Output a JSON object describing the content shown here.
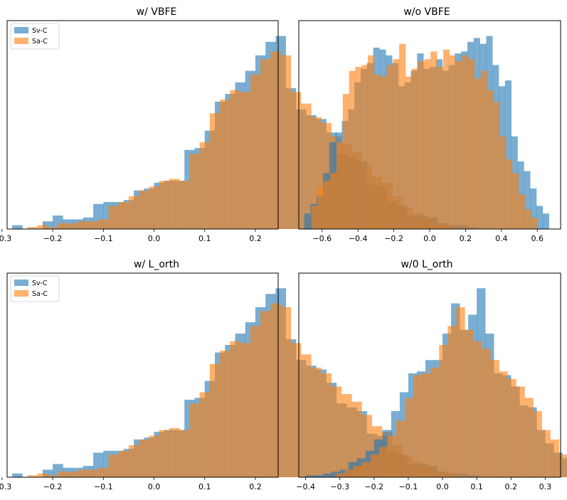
{
  "colors": {
    "sv": "#1f77b4",
    "sa": "#ff7f0e"
  },
  "legend_labels": [
    "Sv-C",
    "Sa-C"
  ],
  "chart_data": [
    {
      "type": "histogram",
      "title": "w/ VBFE",
      "xlabel": "",
      "ylabel": "",
      "xlim": [
        -0.29,
        0.245
      ],
      "ylim": [
        0,
        1.08
      ],
      "xticks": [
        -0.3,
        -0.2,
        -0.1,
        0.0,
        0.1,
        0.2
      ],
      "xtick_labels": [
        "−0.3",
        "−0.2",
        "−0.1",
        "0.0",
        "0.1",
        "0.2"
      ],
      "legend": "top-left",
      "series": [
        {
          "name": "Sv-C",
          "edges_start": -0.28,
          "bin_width": 0.02,
          "values": [
            0.02,
            0,
            0,
            0.04,
            0.07,
            0.05,
            0.05,
            0.06,
            0.13,
            0.14,
            0.14,
            0.15,
            0.2,
            0.21,
            0.24,
            0.25,
            0.25,
            0.41,
            0.42,
            0.51,
            0.66,
            0.7,
            0.76,
            0.82,
            0.9,
            0.97,
            1.0,
            0.73,
            0.62,
            0.59,
            0.57,
            0.5,
            0.39,
            0.37,
            0.35,
            0.23,
            0.22,
            0.14,
            0.12,
            0.07,
            0.07,
            0.06,
            0.03,
            0.02,
            0.02,
            0.01
          ]
        },
        {
          "name": "Sa-C",
          "edges_start": -0.25,
          "bin_width": 0.02,
          "values": [
            0.01,
            0.02,
            0.01,
            0.03,
            0.03,
            0.04,
            0.04,
            0.05,
            0.12,
            0.14,
            0.17,
            0.2,
            0.22,
            0.25,
            0.26,
            0.25,
            0.39,
            0.45,
            0.6,
            0.67,
            0.72,
            0.71,
            0.8,
            0.88,
            0.92,
            0.9,
            0.71,
            0.65,
            0.58,
            0.55,
            0.48,
            0.44,
            0.4,
            0.33,
            0.27,
            0.24,
            0.17,
            0.11,
            0.08,
            0.05,
            0.03,
            0.02
          ]
        }
      ]
    },
    {
      "type": "histogram",
      "title": "w/o VBFE",
      "xlabel": "",
      "ylabel": "",
      "xlim": [
        -0.73,
        0.73
      ],
      "ylim": [
        0,
        1.08
      ],
      "xticks": [
        -0.6,
        -0.4,
        -0.2,
        0.0,
        0.2,
        0.4,
        0.6
      ],
      "xtick_labels": [
        "−0.6",
        "−0.4",
        "−0.2",
        "0.0",
        "0.2",
        "0.4",
        "0.6"
      ],
      "legend": "none",
      "series": [
        {
          "name": "Sv-C",
          "edges_start": -0.7,
          "bin_width": 0.035,
          "values": [
            0.08,
            0.13,
            0.17,
            0.29,
            0.45,
            0.5,
            0.56,
            0.62,
            0.76,
            0.83,
            0.86,
            0.94,
            0.93,
            0.9,
            0.86,
            0.74,
            0.76,
            0.82,
            0.91,
            0.83,
            0.84,
            0.88,
            0.82,
            0.85,
            0.91,
            0.92,
            0.97,
            0.99,
            0.96,
            1.0,
            0.85,
            0.74,
            0.77,
            0.48,
            0.35,
            0.3,
            0.21,
            0.12,
            0.08
          ]
        },
        {
          "name": "Sa-C",
          "edges_start": -0.66,
          "bin_width": 0.035,
          "values": [
            0.12,
            0.22,
            0.25,
            0.29,
            0.45,
            0.7,
            0.82,
            0.84,
            0.85,
            0.9,
            0.8,
            0.79,
            0.85,
            0.88,
            0.96,
            0.79,
            0.83,
            0.87,
            0.88,
            0.92,
            0.84,
            0.93,
            0.9,
            0.87,
            0.9,
            0.88,
            0.78,
            0.82,
            0.72,
            0.66,
            0.48,
            0.36,
            0.29,
            0.18,
            0.1,
            0.06
          ]
        }
      ]
    },
    {
      "type": "histogram",
      "title": "w/ L_orth",
      "xlabel": "",
      "ylabel": "",
      "xlim": [
        -0.29,
        0.245
      ],
      "ylim": [
        0,
        1.08
      ],
      "xticks": [
        -0.3,
        -0.2,
        -0.1,
        0.0,
        0.1,
        0.2
      ],
      "xtick_labels": [
        "−0.3",
        "−0.2",
        "−0.1",
        "0.0",
        "0.1",
        "0.2"
      ],
      "legend": "top-left",
      "series": [
        {
          "name": "Sv-C",
          "edges_start": -0.28,
          "bin_width": 0.02,
          "values": [
            0.02,
            0,
            0,
            0.04,
            0.07,
            0.05,
            0.05,
            0.06,
            0.13,
            0.14,
            0.14,
            0.15,
            0.2,
            0.21,
            0.24,
            0.25,
            0.25,
            0.41,
            0.42,
            0.51,
            0.66,
            0.7,
            0.76,
            0.82,
            0.9,
            0.97,
            1.0,
            0.73,
            0.62,
            0.59,
            0.57,
            0.5,
            0.39,
            0.37,
            0.35,
            0.23,
            0.22,
            0.14,
            0.12,
            0.07,
            0.07,
            0.06,
            0.03,
            0.02,
            0.02,
            0.01
          ]
        },
        {
          "name": "Sa-C",
          "edges_start": -0.25,
          "bin_width": 0.02,
          "values": [
            0.01,
            0.02,
            0.01,
            0.03,
            0.03,
            0.04,
            0.04,
            0.05,
            0.12,
            0.14,
            0.17,
            0.2,
            0.22,
            0.25,
            0.26,
            0.25,
            0.39,
            0.45,
            0.6,
            0.67,
            0.72,
            0.71,
            0.8,
            0.88,
            0.92,
            0.9,
            0.71,
            0.65,
            0.58,
            0.55,
            0.48,
            0.44,
            0.4,
            0.33,
            0.27,
            0.24,
            0.17,
            0.11,
            0.08,
            0.05,
            0.03,
            0.02
          ]
        }
      ]
    },
    {
      "type": "histogram",
      "title": "w/0 L_orth",
      "xlabel": "",
      "ylabel": "",
      "xlim": [
        -0.42,
        0.345
      ],
      "ylim": [
        0,
        1.08
      ],
      "xticks": [
        -0.4,
        -0.3,
        -0.2,
        -0.1,
        0.0,
        0.1,
        0.2,
        0.3
      ],
      "xtick_labels": [
        "−0.4",
        "−0.3",
        "−0.2",
        "−0.1",
        "0.0",
        "0.1",
        "0.2",
        "0.3"
      ],
      "legend": "none",
      "series": [
        {
          "name": "Sv-C",
          "edges_start": -0.4,
          "bin_width": 0.025,
          "values": [
            0.01,
            0.01,
            0.02,
            0.03,
            0.04,
            0.08,
            0.1,
            0.14,
            0.2,
            0.25,
            0.35,
            0.45,
            0.55,
            0.56,
            0.62,
            0.62,
            0.76,
            0.92,
            0.78,
            0.86,
            1.0,
            0.76,
            0.55,
            0.54,
            0.48,
            0.38,
            0.37,
            0.25,
            0.18,
            0.13,
            0.1,
            0.06,
            0.03,
            0.02,
            0.02
          ]
        },
        {
          "name": "Sa-C",
          "edges_start": -0.31,
          "bin_width": 0.025,
          "values": [
            0.02,
            0.04,
            0.06,
            0.08,
            0.12,
            0.16,
            0.22,
            0.3,
            0.42,
            0.54,
            0.55,
            0.58,
            0.7,
            0.8,
            0.9,
            0.78,
            0.72,
            0.68,
            0.62,
            0.56,
            0.52,
            0.48,
            0.42,
            0.35,
            0.25,
            0.2,
            0.12,
            0.08,
            0.05,
            0.03
          ]
        }
      ]
    }
  ]
}
